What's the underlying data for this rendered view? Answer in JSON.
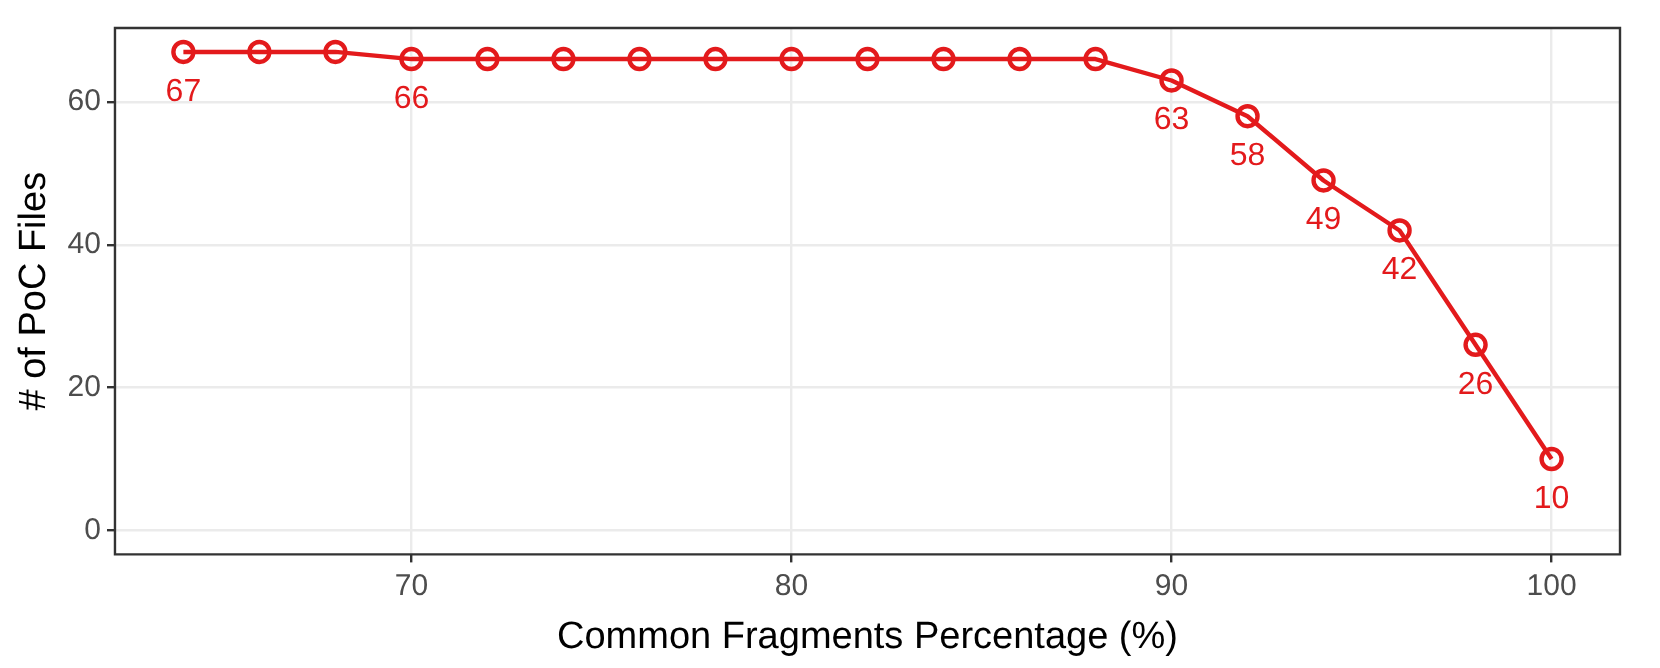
{
  "chart_data": {
    "type": "line",
    "xlabel": "Common Fragments Percentage (%)",
    "ylabel": "# of PoC Files",
    "x": [
      64,
      66,
      68,
      70,
      72,
      74,
      76,
      78,
      80,
      82,
      84,
      86,
      88,
      90,
      92,
      94,
      96,
      98,
      100
    ],
    "values": [
      67,
      67,
      67,
      66,
      66,
      66,
      66,
      66,
      66,
      66,
      66,
      66,
      66,
      63,
      58,
      49,
      42,
      26,
      10
    ],
    "value_labels": [
      "67",
      null,
      null,
      "66",
      null,
      null,
      null,
      null,
      null,
      null,
      null,
      null,
      null,
      "63",
      "58",
      "49",
      "42",
      "26",
      "10"
    ],
    "color": "#e31a1c",
    "marker": "circle",
    "line_style": "solid",
    "xlim": [
      62.2,
      101.8
    ],
    "xticks": [
      70,
      80,
      90,
      100
    ],
    "ylim": [
      -3.35,
      70.35
    ],
    "yticks": [
      0,
      20,
      40,
      60
    ],
    "grid": true,
    "legend": false
  }
}
